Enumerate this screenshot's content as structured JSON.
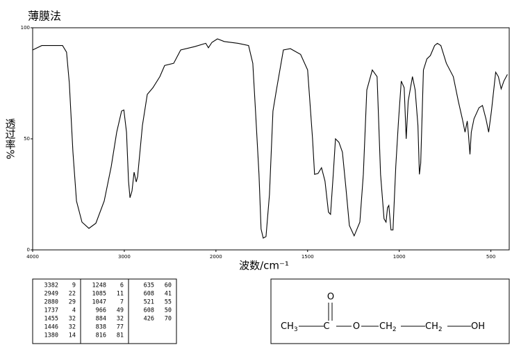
{
  "chart_data": {
    "type": "line",
    "title": "薄膜法",
    "x_label": "波数/cm⁻¹",
    "y_label": "透过率%",
    "xlim": [
      4000,
      400
    ],
    "ylim": [
      0,
      100
    ],
    "x_scale_break": 2000,
    "x_scale_ratio": 2,
    "xticks": [
      4000,
      3000,
      2000,
      1500,
      1000,
      500
    ],
    "yticks": [
      0,
      50,
      100
    ],
    "color": "#000000",
    "x": [
      4000,
      3900,
      3674,
      3630,
      3600,
      3560,
      3522,
      3462,
      3386,
      3310,
      3219,
      3143,
      3083,
      3030,
      3005,
      2976,
      2954,
      2938,
      2916,
      2893,
      2870,
      2855,
      2802,
      2749,
      2688,
      2612,
      2560,
      2461,
      2385,
      2233,
      2111,
      2082,
      2044,
      1992,
      1955,
      1879,
      1822,
      1799,
      1784,
      1765,
      1754,
      1742,
      1727,
      1708,
      1689,
      1670,
      1632,
      1594,
      1538,
      1500,
      1473,
      1462,
      1443,
      1424,
      1405,
      1386,
      1375,
      1360,
      1348,
      1329,
      1310,
      1291,
      1272,
      1246,
      1215,
      1196,
      1177,
      1147,
      1121,
      1102,
      1083,
      1072,
      1064,
      1057,
      1045,
      1034,
      1019,
      1004,
      989,
      973,
      962,
      951,
      928,
      913,
      898,
      890,
      883,
      868,
      849,
      830,
      807,
      792,
      773,
      743,
      705,
      678,
      656,
      641,
      629,
      622,
      614,
      607,
      592,
      565,
      546,
      527,
      512,
      497,
      474,
      459,
      444,
      429,
      410
    ],
    "values": [
      90,
      92,
      92,
      89,
      75,
      44,
      22,
      12.5,
      9.7,
      12,
      22,
      37.5,
      53,
      62.5,
      63,
      53,
      31,
      23.5,
      26.5,
      35,
      30.6,
      33,
      56,
      70,
      73,
      78,
      83,
      84,
      90,
      91.5,
      93,
      91,
      93.4,
      95,
      93.8,
      93,
      92,
      84,
      62.5,
      34,
      9.4,
      5.3,
      6,
      25,
      62.5,
      72,
      90,
      90.6,
      88,
      81,
      50,
      34,
      34.4,
      37,
      31,
      17,
      16,
      34,
      50,
      48.4,
      44,
      28,
      11,
      6.3,
      12.5,
      34,
      72,
      81,
      78,
      34,
      14,
      12.5,
      19,
      20,
      9,
      9,
      37.5,
      58,
      76,
      73,
      50,
      67,
      78,
      72,
      56,
      34,
      39,
      81,
      86,
      87.5,
      92,
      93,
      92,
      84,
      78,
      67,
      59,
      53,
      58,
      51.6,
      43,
      53,
      59,
      64,
      65,
      59,
      53,
      62.5,
      80,
      78,
      72.5,
      76,
      79
    ]
  },
  "peak_table": {
    "columns": [
      [
        [
          3382,
          9
        ],
        [
          2949,
          22
        ],
        [
          2880,
          29
        ],
        [
          1737,
          4
        ],
        [
          1455,
          32
        ],
        [
          1446,
          32
        ],
        [
          1380,
          14
        ]
      ],
      [
        [
          1248,
          6
        ],
        [
          1085,
          11
        ],
        [
          1047,
          7
        ],
        [
          966,
          49
        ],
        [
          884,
          32
        ],
        [
          838,
          77
        ],
        [
          816,
          81
        ]
      ],
      [
        [
          635,
          60
        ],
        [
          608,
          41
        ],
        [
          521,
          55
        ],
        [
          608,
          50
        ],
        [
          426,
          70
        ]
      ]
    ]
  },
  "structure": {
    "top_atom": "O",
    "atoms": [
      {
        "main": "CH",
        "sub": "3"
      },
      {
        "main": "C"
      },
      {
        "main": "O"
      },
      {
        "main": "CH",
        "sub": "2"
      },
      {
        "main": "CH",
        "sub": "2"
      },
      {
        "main": "OH"
      }
    ]
  }
}
